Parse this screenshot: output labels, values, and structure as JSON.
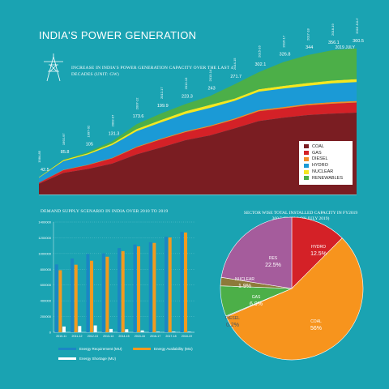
{
  "header": {
    "title": "INDIA'S POWER GENERATION",
    "subtitle": "INCREASE IN INDIA'S POWER GENERATION CAPACITY OVER THE LAST 4 DECADES (UNIT: GW)"
  },
  "chart_data": [
    {
      "type": "area",
      "title": "INCREASE IN INDIA'S POWER GENERATION CAPACITY OVER THE LAST 4 DECADES (UNIT: GW)",
      "x": [
        "1984-85",
        "1992-97",
        "1997-02",
        "2002-07",
        "2007-12",
        "2012-17",
        "2012-13",
        "2013-14",
        "2014-15",
        "2015-16",
        "2016-17",
        "2017-18",
        "2018-19",
        "2019 JULY"
      ],
      "totals": [
        42.5,
        85.8,
        105,
        131.3,
        173.6,
        199.9,
        223.3,
        243,
        271.7,
        302.1,
        326.8,
        344,
        356.1,
        360.5
      ],
      "total_labels": [
        "42.5",
        "85.8",
        "105",
        "131.3",
        "173.6",
        "199.9",
        "223.3",
        "243",
        "271.7",
        "302.1",
        "326.8",
        "344",
        "356.1",
        "360.5\n2019 JULY"
      ],
      "period_labels": [
        "1984-85",
        "1992-97",
        "1997-02",
        "2002-07",
        "2007-12",
        "2012-17",
        "2012-13",
        "2013-14",
        "2014-15",
        "2015-16",
        "2016-17",
        "2017-18",
        "2018-19",
        "2019 JULY"
      ],
      "stack_shares": {
        "COAL": [
          0.62,
          0.62,
          0.6,
          0.58,
          0.57,
          0.58,
          0.6,
          0.6,
          0.6,
          0.6,
          0.58,
          0.57,
          0.56,
          0.56
        ],
        "GAS": [
          0.06,
          0.08,
          0.09,
          0.1,
          0.1,
          0.1,
          0.09,
          0.09,
          0.08,
          0.08,
          0.07,
          0.07,
          0.07,
          0.07
        ],
        "DIESEL": [
          0.01,
          0.01,
          0.01,
          0.01,
          0.01,
          0.01,
          0.01,
          0.01,
          0.01,
          0.01,
          0.01,
          0.01,
          0.01,
          0.01
        ],
        "HYDRO": [
          0.28,
          0.25,
          0.24,
          0.24,
          0.22,
          0.2,
          0.19,
          0.18,
          0.16,
          0.15,
          0.14,
          0.13,
          0.13,
          0.13
        ],
        "NUCLEAR": [
          0.03,
          0.03,
          0.03,
          0.03,
          0.03,
          0.03,
          0.03,
          0.03,
          0.02,
          0.02,
          0.02,
          0.02,
          0.02,
          0.02
        ],
        "RENEWABLES": [
          0.0,
          0.01,
          0.03,
          0.04,
          0.07,
          0.08,
          0.08,
          0.09,
          0.13,
          0.14,
          0.18,
          0.2,
          0.21,
          0.21
        ]
      },
      "legend": [
        {
          "name": "COAL",
          "color": "#7a1d22"
        },
        {
          "name": "GAS",
          "color": "#d42127"
        },
        {
          "name": "DIESEL",
          "color": "#f28c28"
        },
        {
          "name": "HYDRO",
          "color": "#1b9ad6"
        },
        {
          "name": "NUCLEAR",
          "color": "#f5e71f"
        },
        {
          "name": "RENEWABLES",
          "color": "#4caf48"
        }
      ],
      "ylim": [
        0,
        380
      ]
    },
    {
      "type": "bar",
      "title": "DEMAND SUPPLY SCENARIO IN INDIA OVER 2010 TO 2019",
      "categories": [
        "2010-11",
        "2011-12",
        "2012-13",
        "2013-14",
        "2014-15",
        "2015-16",
        "2016-17",
        "2017-18",
        "2018-19"
      ],
      "yticks": [
        "0",
        "200000",
        "400000",
        "600000",
        "800000",
        "1000000",
        "1200000",
        "1400000"
      ],
      "ylim": [
        0,
        1400000
      ],
      "series": [
        {
          "name": "Energy Requirement (MU)",
          "color": "#1b86c4",
          "values": [
            861591,
            937199,
            995557,
            1002257,
            1068923,
            1114408,
            1142929,
            1213326,
            1274595
          ]
        },
        {
          "name": "Energy Availability (MU)",
          "color": "#f29a1f",
          "values": [
            788355,
            857886,
            908652,
            959829,
            1030785,
            1090850,
            1135334,
            1204697,
            1267526
          ]
        },
        {
          "name": "Energy Shortage (MU)",
          "color": "#ffffff",
          "values": [
            73236,
            79313,
            86905,
            42428,
            38138,
            23558,
            7595,
            8629,
            7070
          ]
        }
      ]
    },
    {
      "type": "pie",
      "title": "SECTOR WISE TOTAL INSTALLED CAPACITY IN FY2019 360.5 GW (AS ON JULY 2019)",
      "title_lines": [
        "SECTOR WISE TOTAL INSTALLED CAPACITY IN FY2019",
        "360.5 GW (AS ON JULY 2019)"
      ],
      "slices": [
        {
          "name": "HYDRO",
          "value": 12.5,
          "label": "12.5%",
          "color": "#d42127"
        },
        {
          "name": "COAL",
          "value": 56,
          "label": "56%",
          "color": "#f7941d"
        },
        {
          "name": "DIESEL",
          "value": 0.2,
          "label": "0.2%",
          "color": "#5a6e7a"
        },
        {
          "name": "GAS",
          "value": 6.9,
          "label": "6.9%",
          "color": "#4caf48"
        },
        {
          "name": "NUCLEAR",
          "value": 1.9,
          "label": "1.9%",
          "color": "#8d7a3a"
        },
        {
          "name": "RES",
          "value": 22.5,
          "label": "22.5%",
          "color": "#a55c9c"
        }
      ]
    }
  ]
}
